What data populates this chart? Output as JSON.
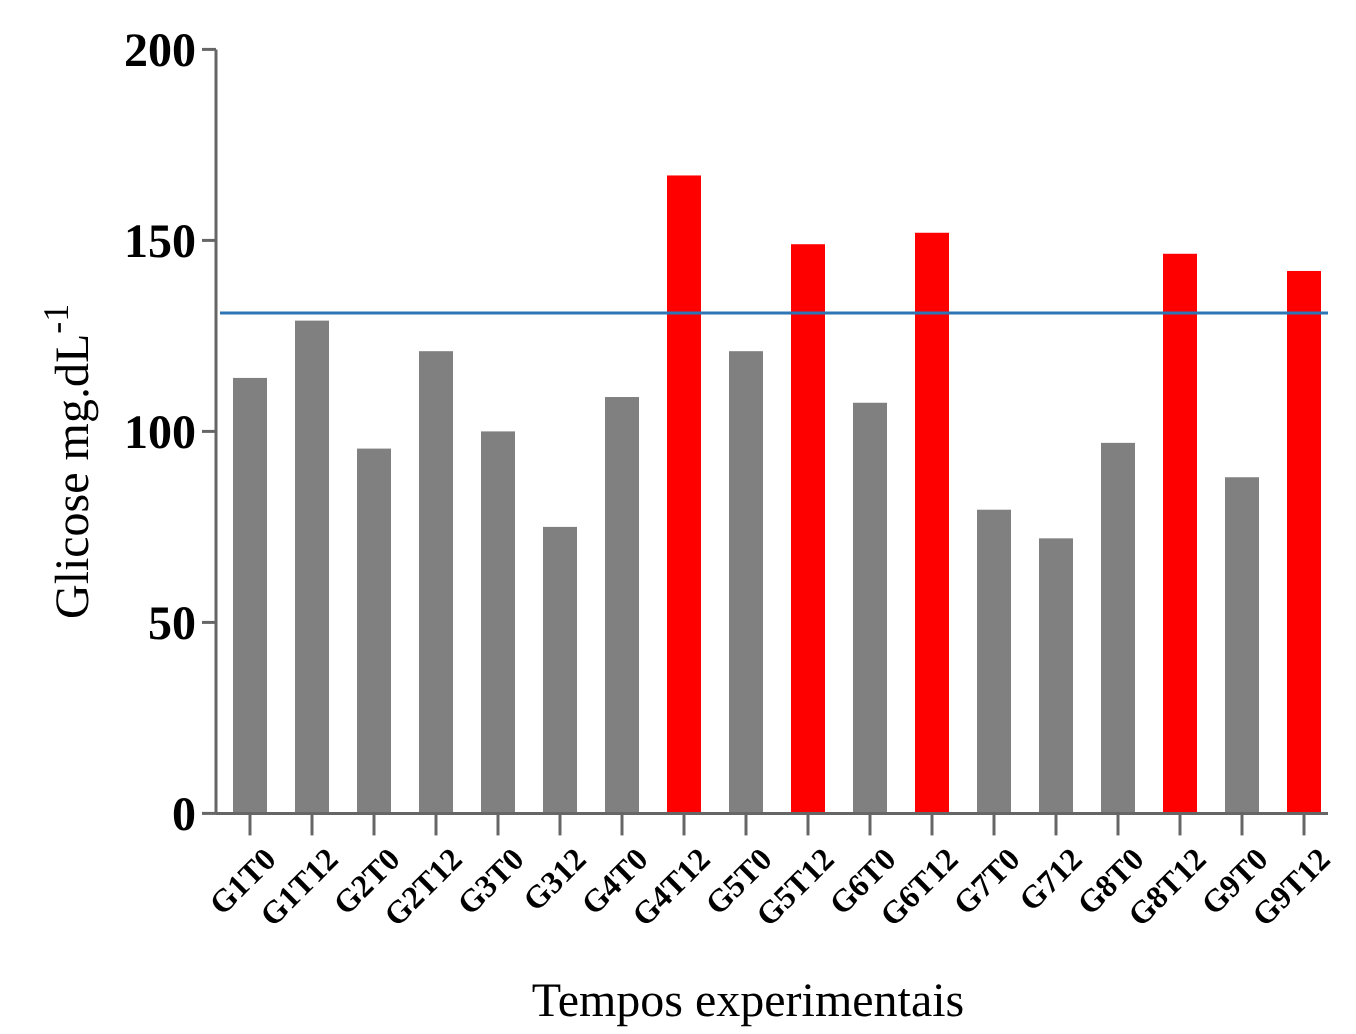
{
  "chart_data": {
    "type": "bar",
    "xlabel": "Tempos experimentais",
    "ylabel": "Glicose mg.dL$^{-1}$",
    "categories": [
      "G1T0",
      "G1T12",
      "G2T0",
      "G2T12",
      "G3T0",
      "G312",
      "G4T0",
      "G4T12",
      "G5T0",
      "G5T12",
      "G6T0",
      "G6T12",
      "G7T0",
      "G712",
      "G8T0",
      "G8T12",
      "G9T0",
      "G9T12"
    ],
    "values": [
      114,
      129,
      95.5,
      121,
      100,
      75,
      109,
      167,
      121,
      149,
      107.5,
      152,
      79.5,
      72,
      97,
      146.5,
      88,
      142
    ],
    "colors": [
      "#808080",
      "#808080",
      "#808080",
      "#808080",
      "#808080",
      "#808080",
      "#808080",
      "#ff0000",
      "#808080",
      "#ff0000",
      "#808080",
      "#ff0000",
      "#808080",
      "#808080",
      "#808080",
      "#ff0000",
      "#808080",
      "#ff0000"
    ],
    "ylim": [
      0,
      200
    ],
    "yticks": [
      0,
      50,
      100,
      150,
      200
    ],
    "ref_lines": [
      {
        "axis": "y",
        "value": 131,
        "color": "#2e75b6"
      }
    ]
  }
}
